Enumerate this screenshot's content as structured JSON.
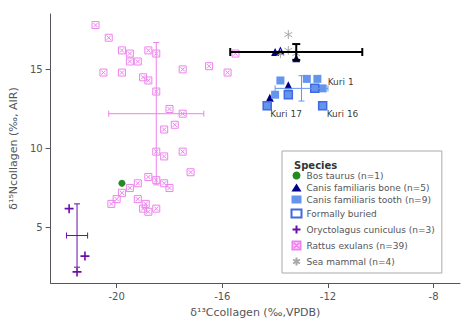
{
  "chart_data": {
    "type": "scatter",
    "xlabel": "δ¹³Ccollagen (‰,VPDB)",
    "ylabel": "δ¹⁵Ncollagen (‰, AIR)",
    "xlim": [
      -22.5,
      -7.0
    ],
    "xticks": [
      -20,
      -16,
      -12,
      -8
    ],
    "ylim": [
      1.5,
      18.5
    ],
    "yticks": [
      5,
      10,
      15
    ],
    "grid": false,
    "legend": "lower right",
    "legend_title": "Species",
    "series": [
      {
        "name": "Bos taurus (n=1)",
        "color": "#228B22",
        "marker": "circle",
        "values": [
          [
            -19.8,
            7.8
          ]
        ]
      },
      {
        "name": "Canis familiaris bone (n=5)",
        "color": "#00008B",
        "marker": "triangle",
        "values": [
          [
            -14.2,
            13.2
          ],
          [
            -14.0,
            16.1
          ],
          [
            -13.8,
            16.2
          ],
          [
            -13.5,
            14.0
          ],
          [
            -13.2,
            15.7
          ]
        ]
      },
      {
        "name": "Canis familiaris tooth (n=9)",
        "color": "#6495ED",
        "marker": "square",
        "values": [
          [
            -14.3,
            12.7
          ],
          [
            -14.0,
            13.4
          ],
          [
            -13.8,
            14.3
          ],
          [
            -13.5,
            13.4
          ],
          [
            -12.8,
            14.4
          ],
          [
            -12.5,
            13.8
          ],
          [
            -12.4,
            14.4
          ],
          [
            -12.2,
            13.8
          ],
          [
            -12.2,
            12.7
          ]
        ],
        "error_bar": {
          "x": -13.0,
          "y": 13.8,
          "sd_x": 1.0,
          "sd_y": 0.8
        }
      },
      {
        "name": "Formally buried",
        "color": "#4169E1",
        "marker": "square_outline",
        "values": [
          [
            -14.3,
            12.7
          ],
          [
            -13.5,
            13.4
          ],
          [
            -12.5,
            13.8
          ],
          [
            -12.2,
            12.7
          ]
        ]
      },
      {
        "name": "Oryctolagus cuniculus (n=3)",
        "color": "#6A0DAD",
        "marker": "plus",
        "values": [
          [
            -21.8,
            6.2
          ],
          [
            -21.2,
            3.2
          ],
          [
            -21.5,
            2.2
          ]
        ],
        "error_bar": {
          "x": -21.5,
          "y": 4.5,
          "sd_x": 0.4,
          "sd_y": 2.0
        }
      },
      {
        "name": "Rattus exulans (n=39)",
        "color": "#EE82EE",
        "marker": "square_x",
        "values": [
          [
            -20.8,
            17.8
          ],
          [
            -20.3,
            17.0
          ],
          [
            -19.8,
            16.2
          ],
          [
            -19.5,
            15.5
          ],
          [
            -19.2,
            15.5
          ],
          [
            -18.8,
            16.2
          ],
          [
            -18.5,
            16.0
          ],
          [
            -19.0,
            14.5
          ],
          [
            -18.8,
            14.3
          ],
          [
            -18.5,
            13.6
          ],
          [
            -18.0,
            12.5
          ],
          [
            -17.5,
            12.2
          ],
          [
            -18.2,
            11.2
          ],
          [
            -17.8,
            11.5
          ],
          [
            -18.5,
            9.8
          ],
          [
            -18.2,
            9.5
          ],
          [
            -17.5,
            9.8
          ],
          [
            -17.2,
            8.5
          ],
          [
            -18.8,
            8.2
          ],
          [
            -18.5,
            8.0
          ],
          [
            -18.2,
            7.8
          ],
          [
            -18.0,
            7.5
          ],
          [
            -19.2,
            7.8
          ],
          [
            -19.5,
            7.5
          ],
          [
            -19.8,
            7.2
          ],
          [
            -20.0,
            6.8
          ],
          [
            -20.2,
            6.5
          ],
          [
            -19.2,
            6.8
          ],
          [
            -18.9,
            6.5
          ],
          [
            -19.0,
            6.2
          ],
          [
            -18.8,
            6.0
          ],
          [
            -18.5,
            6.2
          ],
          [
            -17.5,
            15.0
          ],
          [
            -16.5,
            15.2
          ],
          [
            -15.8,
            14.8
          ],
          [
            -15.5,
            16.0
          ],
          [
            -19.5,
            16.0
          ],
          [
            -20.5,
            14.8
          ],
          [
            -19.8,
            14.8
          ]
        ],
        "error_bar": {
          "x": -18.5,
          "y": 12.2,
          "sd_x": 1.8,
          "sd_y": 4.5
        }
      },
      {
        "name": "Sea mammal (n=4)",
        "color": "#A8A8A8",
        "marker": "asterisk",
        "values": [
          [
            -13.8,
            16.0
          ],
          [
            -13.5,
            16.2
          ],
          [
            -13.2,
            16.0
          ],
          [
            -13.5,
            17.2
          ]
        ],
        "error_bar": {
          "x": -13.2,
          "y": 16.1,
          "sd_x": 2.5,
          "sd_y": 0.5,
          "color": "#000000"
        }
      }
    ],
    "annotations": [
      {
        "text": "Kuri 1",
        "x": -12.2,
        "y": 13.8
      },
      {
        "text": "Kuri 16",
        "x": -12.2,
        "y": 12.7
      },
      {
        "text": "Kuri 17",
        "x": -14.3,
        "y": 12.7
      }
    ]
  }
}
